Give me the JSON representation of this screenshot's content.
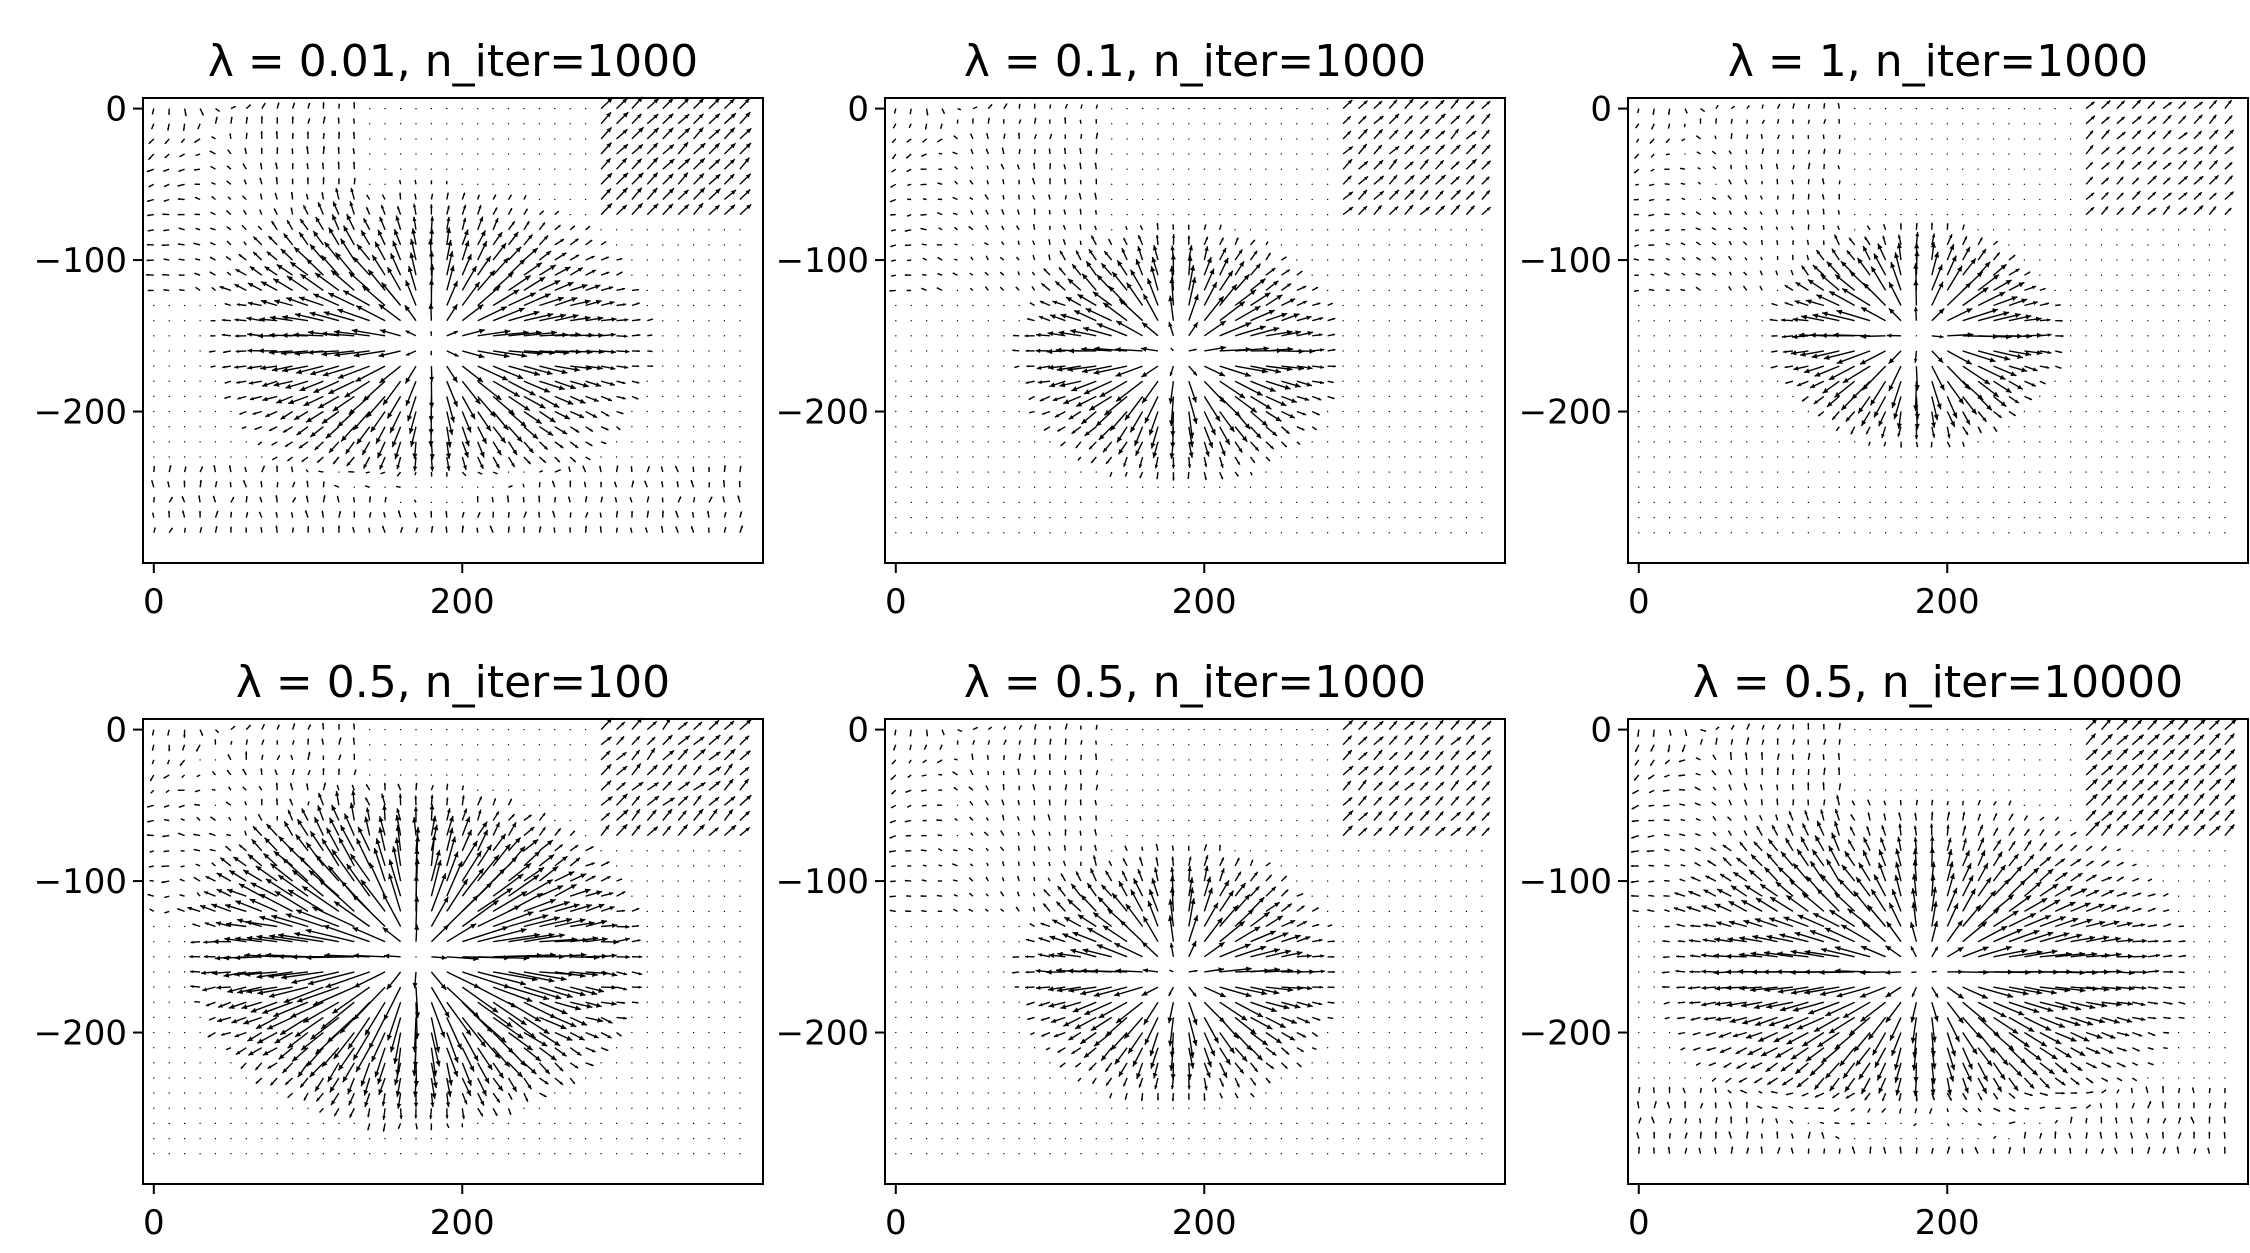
{
  "figure": {
    "chart_data": [
      {
        "type": "quiver",
        "title": "λ = 0.01, n_iter=1000",
        "lambda": 0.01,
        "n_iter": 1000,
        "xlim": [
          -7,
          395
        ],
        "ylim": [
          -300,
          7
        ],
        "xticks": [
          0,
          200
        ],
        "yticks": [
          0,
          -100,
          -200
        ],
        "grid_step": 10,
        "radial_center": [
          180,
          -155
        ],
        "radial": {
          "inner": 0.9,
          "max": 0.85,
          "xscale": 1.35,
          "decay": 85
        },
        "corner_field": {
          "strength": 0.55,
          "top_left": true,
          "top_right": true,
          "bottom": true
        },
        "grid": false,
        "legend": false
      },
      {
        "type": "quiver",
        "title": "λ = 0.1, n_iter=1000",
        "lambda": 0.1,
        "n_iter": 1000,
        "xlim": [
          -7,
          395
        ],
        "ylim": [
          -300,
          7
        ],
        "xticks": [
          0,
          200
        ],
        "yticks": [
          0,
          -100,
          -200
        ],
        "grid_step": 10,
        "radial_center": [
          183,
          -162
        ],
        "radial": {
          "inner": 1.0,
          "max": 0.95,
          "xscale": 1.2,
          "decay": 70
        },
        "corner_field": {
          "strength": 0.45,
          "top_left": true,
          "top_right": true,
          "bottom": false
        },
        "grid": false,
        "legend": false
      },
      {
        "type": "quiver",
        "title": "λ = 1, n_iter=1000",
        "lambda": 1,
        "n_iter": 1000,
        "xlim": [
          -7,
          395
        ],
        "ylim": [
          -300,
          7
        ],
        "xticks": [
          0,
          200
        ],
        "yticks": [
          0,
          -100,
          -200
        ],
        "grid_step": 10,
        "radial_center": [
          180,
          -150
        ],
        "radial": {
          "inner": 1.05,
          "max": 1.0,
          "xscale": 1.25,
          "decay": 60
        },
        "corner_field": {
          "strength": 0.4,
          "top_left": true,
          "top_right": true,
          "bottom": false
        },
        "grid": false,
        "legend": false
      },
      {
        "type": "quiver",
        "title": "λ = 0.5, n_iter=100",
        "lambda": 0.5,
        "n_iter": 100,
        "xlim": [
          -7,
          395
        ],
        "ylim": [
          -300,
          7
        ],
        "xticks": [
          0,
          200
        ],
        "yticks": [
          0,
          -100,
          -200
        ],
        "grid_step": 10,
        "radial_center": [
          170,
          -150
        ],
        "radial": {
          "inner": 1.3,
          "max": 1.6,
          "xscale": 1.3,
          "decay": 90
        },
        "corner_field": {
          "strength": 0.5,
          "top_left": true,
          "top_right": true,
          "bottom": false
        },
        "grid": false,
        "legend": false
      },
      {
        "type": "quiver",
        "title": "λ = 0.5, n_iter=1000",
        "lambda": 0.5,
        "n_iter": 1000,
        "xlim": [
          -7,
          395
        ],
        "ylim": [
          -300,
          7
        ],
        "xticks": [
          0,
          200
        ],
        "yticks": [
          0,
          -100,
          -200
        ],
        "grid_step": 10,
        "radial_center": [
          183,
          -162
        ],
        "radial": {
          "inner": 1.0,
          "max": 0.95,
          "xscale": 1.2,
          "decay": 70
        },
        "corner_field": {
          "strength": 0.45,
          "top_left": true,
          "top_right": true,
          "bottom": false
        },
        "grid": false,
        "legend": false
      },
      {
        "type": "quiver",
        "title": "λ = 0.5, n_iter=10000",
        "lambda": 0.5,
        "n_iter": 10000,
        "xlim": [
          -7,
          395
        ],
        "ylim": [
          -300,
          7
        ],
        "xticks": [
          0,
          200
        ],
        "yticks": [
          0,
          -100,
          -200
        ],
        "grid_step": 10,
        "radial_center": [
          185,
          -160
        ],
        "radial": {
          "inner": 0.85,
          "max": 0.85,
          "xscale": 1.45,
          "decay": 95
        },
        "corner_field": {
          "strength": 0.55,
          "top_left": true,
          "top_right": true,
          "bottom": true
        },
        "grid": false,
        "legend": false
      }
    ]
  }
}
